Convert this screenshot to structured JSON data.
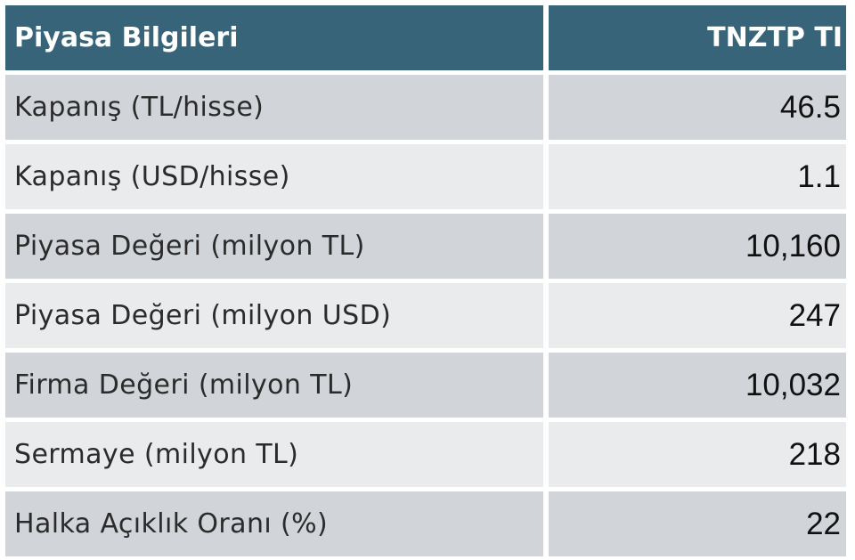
{
  "header": {
    "label": "Piyasa Bilgileri",
    "ticker": "TNZTP TI"
  },
  "rows": [
    {
      "label": "Kapanış (TL/hisse)",
      "value": "46.5"
    },
    {
      "label": "Kapanış (USD/hisse)",
      "value": "1.1"
    },
    {
      "label": "Piyasa Değeri (milyon TL)",
      "value": "10,160"
    },
    {
      "label": "Piyasa Değeri (milyon USD)",
      "value": "247"
    },
    {
      "label": "Firma Değeri (milyon TL)",
      "value": "10,032"
    },
    {
      "label": "Sermaye (milyon TL)",
      "value": "218"
    },
    {
      "label": "Halka Açıklık Oranı (%)",
      "value": "22"
    }
  ],
  "colors": {
    "header_bg": "#376479",
    "row_dark": "#d1d4d8",
    "row_light": "#eaebed"
  }
}
